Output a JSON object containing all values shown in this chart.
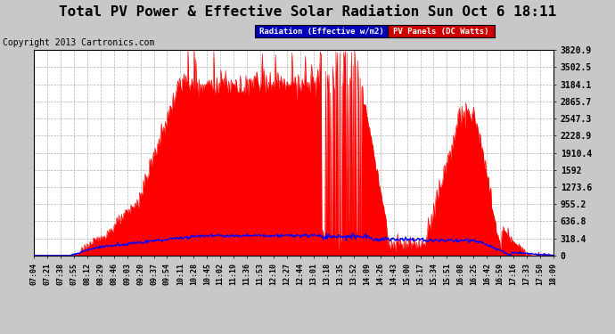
{
  "title": "Total PV Power & Effective Solar Radiation Sun Oct 6 18:11",
  "copyright": "Copyright 2013 Cartronics.com",
  "legend_radiation": "Radiation (Effective w/m2)",
  "legend_pv": "PV Panels (DC Watts)",
  "ylabel_values": [
    0.0,
    318.4,
    636.8,
    955.2,
    1273.6,
    1592.0,
    1910.4,
    2228.9,
    2547.3,
    2865.7,
    3184.1,
    3502.5,
    3820.9
  ],
  "xtick_labels": [
    "07:04",
    "07:21",
    "07:38",
    "07:55",
    "08:12",
    "08:29",
    "08:46",
    "09:03",
    "09:20",
    "09:37",
    "09:54",
    "10:11",
    "10:28",
    "10:45",
    "11:02",
    "11:19",
    "11:36",
    "11:53",
    "12:10",
    "12:27",
    "12:44",
    "13:01",
    "13:18",
    "13:35",
    "13:52",
    "14:09",
    "14:26",
    "14:43",
    "15:00",
    "15:17",
    "15:34",
    "15:51",
    "16:08",
    "16:25",
    "16:42",
    "16:59",
    "17:16",
    "17:33",
    "17:50",
    "18:09"
  ],
  "bg_color": "#c8c8c8",
  "plot_bg_color": "#ffffff",
  "red_color": "#ff0000",
  "blue_color": "#0000ff",
  "legend_radiation_bg": "#0000bb",
  "legend_pv_bg": "#cc0000",
  "grid_color": "#b0b0b0",
  "title_color": "#000000",
  "title_fontsize": 11.5,
  "copyright_fontsize": 7,
  "ymax": 3820.9,
  "ymin": 0.0,
  "n_points": 665
}
